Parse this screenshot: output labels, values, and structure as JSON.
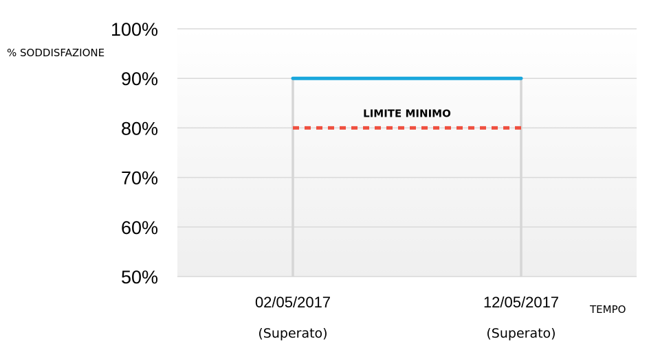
{
  "chart_data": {
    "type": "line",
    "ylabel": "% SODDISFAZIONE",
    "xlabel": "TEMPO",
    "ylim": [
      50,
      100
    ],
    "yticks": [
      "50%",
      "60%",
      "70%",
      "80%",
      "90%",
      "100%"
    ],
    "yticks_values": [
      50,
      60,
      70,
      80,
      90,
      100
    ],
    "categories": [
      "02/05/2017",
      "12/05/2017"
    ],
    "category_sublabels": [
      "(Superato)",
      "(Superato)"
    ],
    "grid": true,
    "series": [
      {
        "values": [
          90,
          90
        ],
        "color": "#1aa7dc",
        "style": "solid"
      },
      {
        "values": [
          80,
          80
        ],
        "color": "#ef5040",
        "style": "dashed"
      }
    ],
    "annotations": [
      {
        "text": "LIMITE MINIMO",
        "x_between": [
          0,
          1
        ],
        "y": 83
      }
    ]
  }
}
